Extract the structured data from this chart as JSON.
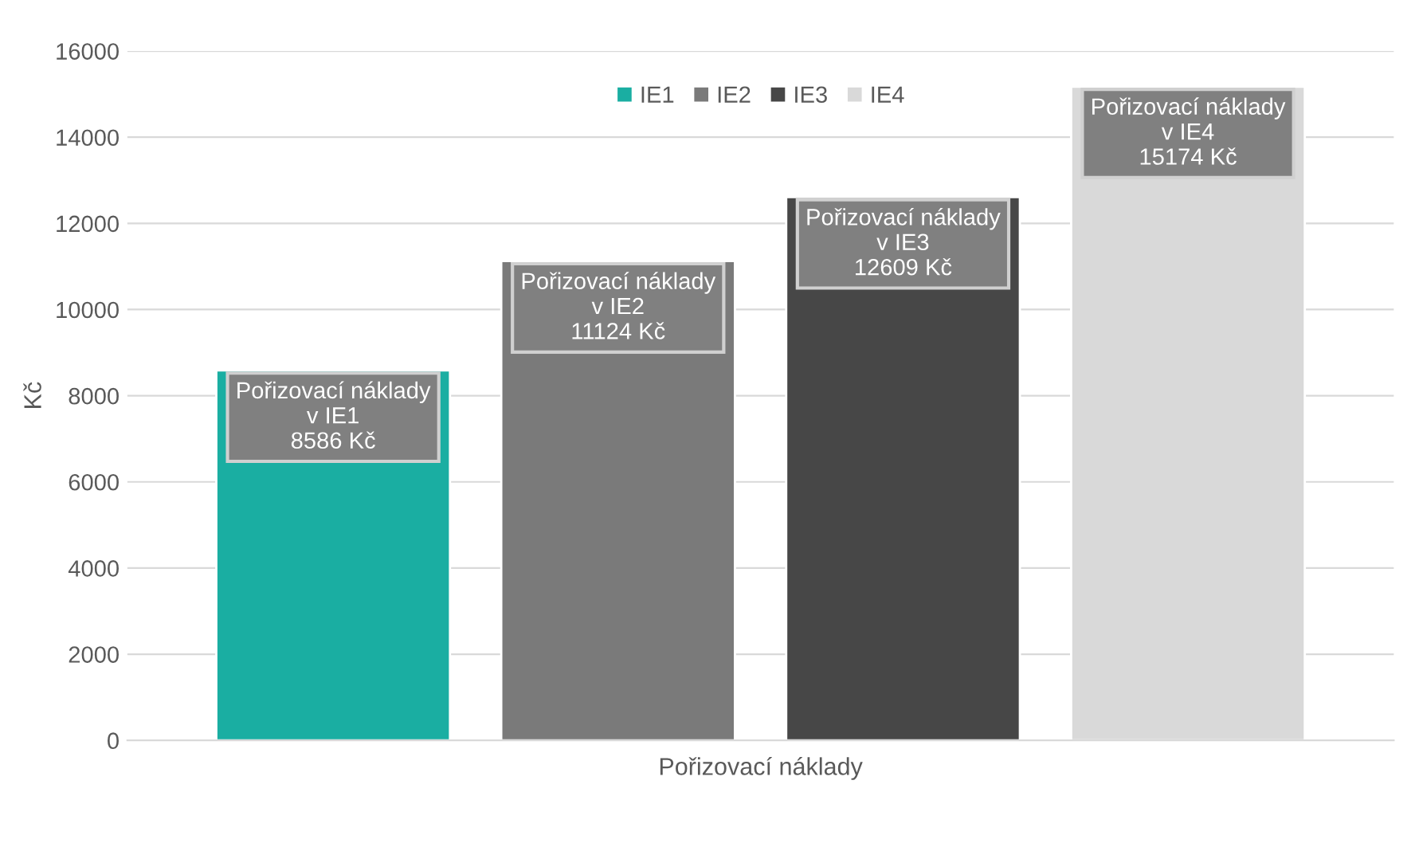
{
  "chart_data": {
    "type": "bar",
    "xlabel": "Pořizovací náklady",
    "ylabel": "Kč",
    "categories": [
      null
    ],
    "series": [
      {
        "name": "IE1",
        "color": "#1aaea2",
        "values": [
          8586
        ],
        "value_labels": [
          "Pořizovací náklady\nv IE1\n8586 Kč"
        ]
      },
      {
        "name": "IE2",
        "color": "#7a7a7a",
        "values": [
          11124
        ],
        "value_labels": [
          "Pořizovací náklady\nv IE2\n11124 Kč"
        ]
      },
      {
        "name": "IE3",
        "color": "#474747",
        "values": [
          12609
        ],
        "value_labels": [
          "Pořizovací náklady\nv IE3\n12609 Kč"
        ]
      },
      {
        "name": "IE4",
        "color": "#d9d9d9",
        "values": [
          15174
        ],
        "value_labels": [
          "Pořizovací náklady\nv IE4\n15174 Kč"
        ]
      }
    ],
    "ylim": [
      0,
      16000
    ],
    "yticks": [
      0,
      2000,
      4000,
      6000,
      8000,
      10000,
      12000,
      14000,
      16000
    ],
    "grid": "y",
    "legend": "top"
  }
}
